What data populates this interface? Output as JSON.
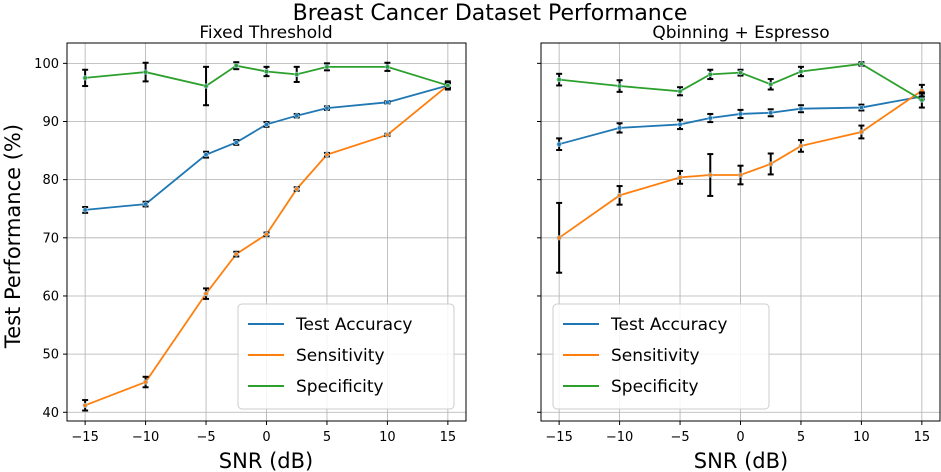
{
  "figure": {
    "suptitle": "Breast Cancer Dataset Performance",
    "ylabel": "Test Performance (%)"
  },
  "colors": {
    "accuracy": "#1f77b4",
    "sensitivity": "#ff7f0e",
    "specificity": "#2ca02c",
    "errorbar": "#000000",
    "grid": "#b0b0b0"
  },
  "chart_data": [
    {
      "type": "line",
      "title": "Fixed Threshold",
      "xlabel": "SNR (dB)",
      "ylabel": "Test Performance (%)",
      "xlim": [
        -16.5,
        16.5
      ],
      "ylim": [
        38.5,
        103.5
      ],
      "xticks": [
        -15,
        -10,
        -5,
        0,
        5,
        10,
        15
      ],
      "yticks": [
        40,
        50,
        60,
        70,
        80,
        90,
        100
      ],
      "grid": true,
      "legend_position": "lower-right",
      "x": [
        -15,
        -10,
        -5,
        -2.5,
        0,
        2.5,
        5,
        10,
        15
      ],
      "series": [
        {
          "name": "Test Accuracy",
          "values": [
            74.8,
            75.8,
            84.3,
            86.4,
            89.5,
            91.0,
            92.3,
            93.3,
            96.2
          ],
          "errors": [
            0.5,
            0.4,
            0.5,
            0.4,
            0.4,
            0.3,
            0.3,
            0.2,
            0.4
          ]
        },
        {
          "name": "Sensitivity",
          "values": [
            41.2,
            45.2,
            60.4,
            67.2,
            70.6,
            78.4,
            84.3,
            87.7,
            96.2
          ],
          "errors": [
            0.9,
            0.9,
            0.9,
            0.4,
            0.3,
            0.3,
            0.3,
            0.2,
            0.4
          ]
        },
        {
          "name": "Specificity",
          "values": [
            97.5,
            98.5,
            96.1,
            99.6,
            98.6,
            98.1,
            99.4,
            99.4,
            96.2
          ],
          "errors": [
            1.4,
            1.6,
            3.3,
            0.6,
            0.8,
            1.3,
            0.6,
            0.7,
            0.7
          ]
        }
      ]
    },
    {
      "type": "line",
      "title": "Qbinning + Espresso",
      "xlabel": "SNR (dB)",
      "xlim": [
        -16.5,
        16.5
      ],
      "ylim": [
        38.5,
        103.5
      ],
      "xticks": [
        -15,
        -10,
        -5,
        0,
        5,
        10,
        15
      ],
      "yticks": [
        40,
        50,
        60,
        70,
        80,
        90,
        100
      ],
      "grid": true,
      "legend_position": "lower-left",
      "x": [
        -15,
        -10,
        -5,
        -2.5,
        0,
        2.5,
        5,
        10,
        15
      ],
      "series": [
        {
          "name": "Test Accuracy",
          "values": [
            86.1,
            88.9,
            89.5,
            90.6,
            91.3,
            91.5,
            92.2,
            92.4,
            94.3
          ],
          "errors": [
            1.0,
            0.8,
            0.8,
            0.7,
            0.7,
            0.6,
            0.6,
            0.5,
            0.5
          ]
        },
        {
          "name": "Sensitivity",
          "values": [
            70.0,
            77.3,
            80.4,
            80.8,
            80.8,
            82.7,
            85.8,
            88.2,
            95.3
          ],
          "errors": [
            6.0,
            1.6,
            1.1,
            3.6,
            1.6,
            1.8,
            1.0,
            1.1,
            1.0
          ]
        },
        {
          "name": "Specificity",
          "values": [
            97.2,
            96.1,
            95.2,
            98.1,
            98.4,
            96.4,
            98.6,
            99.9,
            93.7
          ],
          "errors": [
            1.0,
            1.0,
            0.7,
            0.8,
            0.5,
            0.9,
            0.8,
            0.3,
            1.3
          ]
        }
      ]
    }
  ]
}
